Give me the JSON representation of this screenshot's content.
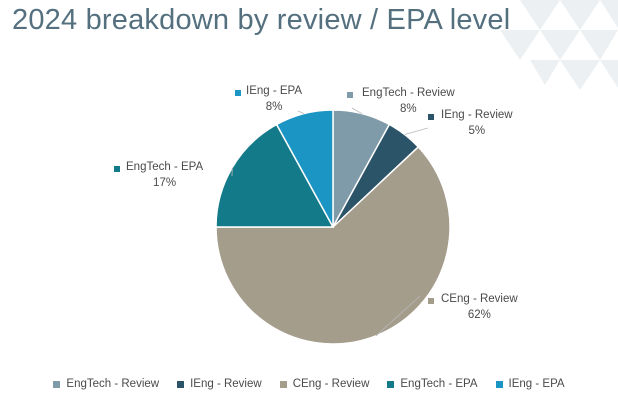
{
  "title": "2024 breakdown by review / EPA level",
  "colors": {
    "title": "#54707f",
    "label_text": "#4a4a4a",
    "leader": "#b8b8b8",
    "slice_border": "#ffffff",
    "decoration": "#e6ebee"
  },
  "chart_data": {
    "type": "pie",
    "title": "",
    "start_angle_deg": 0,
    "direction": "clockwise",
    "legend_position": "bottom",
    "slices": [
      {
        "label": "EngTech - Review",
        "value": 8,
        "percent_label": "8%",
        "color": "#7f9aa8"
      },
      {
        "label": "IEng - Review",
        "value": 5,
        "percent_label": "5%",
        "color": "#2c5468"
      },
      {
        "label": "CEng - Review",
        "value": 62,
        "percent_label": "62%",
        "color": "#a59d8b"
      },
      {
        "label": "EngTech - EPA",
        "value": 17,
        "percent_label": "17%",
        "color": "#137a8a"
      },
      {
        "label": "IEng - EPA",
        "value": 8,
        "percent_label": "8%",
        "color": "#1a95c4"
      }
    ]
  }
}
